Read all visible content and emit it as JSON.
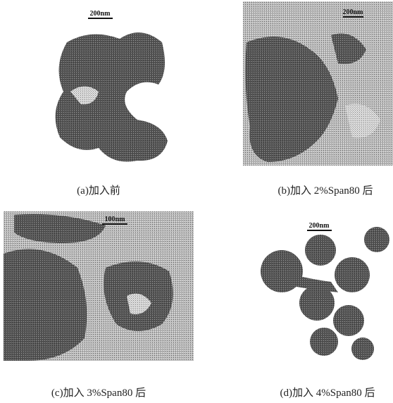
{
  "panels": [
    {
      "scale_bar": "200nm",
      "caption": "(a)加入前"
    },
    {
      "scale_bar": "200nm",
      "caption": "(b)加入 2%Span80 后"
    },
    {
      "scale_bar": "100nm",
      "caption": "(c)加入 3%Span80 后"
    },
    {
      "scale_bar": "200nm",
      "caption": "(d)加入 4%Span80 后"
    }
  ]
}
